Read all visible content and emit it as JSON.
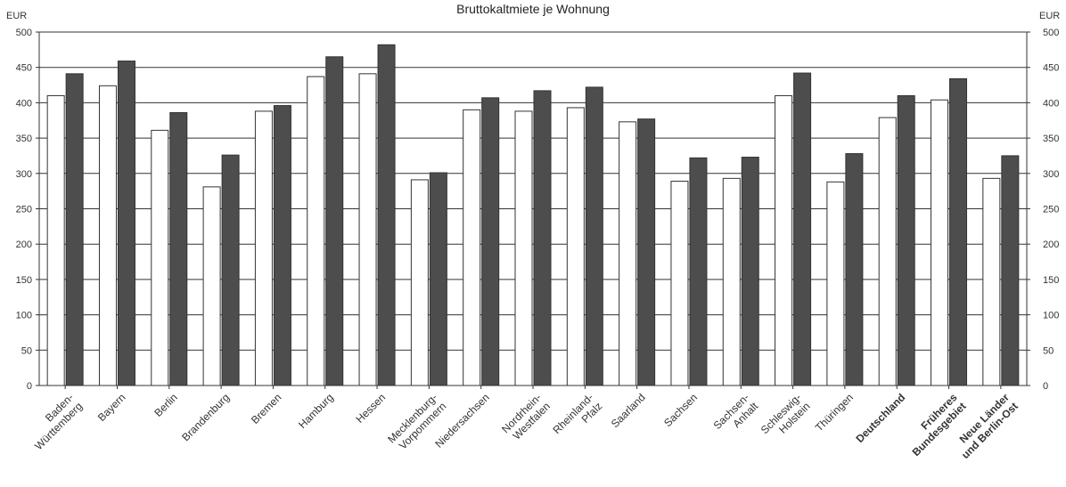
{
  "chart_data": {
    "type": "bar",
    "title": "Bruttokaltmiete je Wohnung",
    "unit": "EUR",
    "xlabel": "",
    "ylabel": "",
    "ylim": [
      0,
      500
    ],
    "yticks": [
      0,
      50,
      100,
      150,
      200,
      250,
      300,
      350,
      400,
      450,
      500
    ],
    "grid": true,
    "legend": "none",
    "categories": [
      "Baden-\nWürttemberg",
      "Bayern",
      "Berlin",
      "Brandenburg",
      "Bremen",
      "Hamburg",
      "Hessen",
      "Mecklenburg-\nVorpommern",
      "Niedersachsen",
      "Nordrhein-\nWestfalen",
      "Rheinland-\nPfalz",
      "Saarland",
      "Sachsen",
      "Sachsen-\nAnhalt",
      "Schleswig-\nHolstein",
      "Thüringen",
      "Deutschland",
      "Früheres\nBundesgebiet",
      "Neue Länder\nund Berlin-Ost"
    ],
    "bold_categories": [
      "Deutschland",
      "Früheres\nBundesgebiet",
      "Neue Länder\nund Berlin-Ost"
    ],
    "series": [
      {
        "values": [
          410,
          424,
          361,
          281,
          388,
          437,
          441,
          291,
          390,
          388,
          393,
          373,
          289,
          293,
          410,
          288,
          379,
          404,
          293
        ],
        "color": "#ffffff"
      },
      {
        "values": [
          441,
          459,
          386,
          326,
          396,
          465,
          482,
          301,
          407,
          417,
          422,
          377,
          322,
          323,
          442,
          328,
          410,
          434,
          325
        ],
        "color": "#4d4d4d"
      }
    ]
  }
}
